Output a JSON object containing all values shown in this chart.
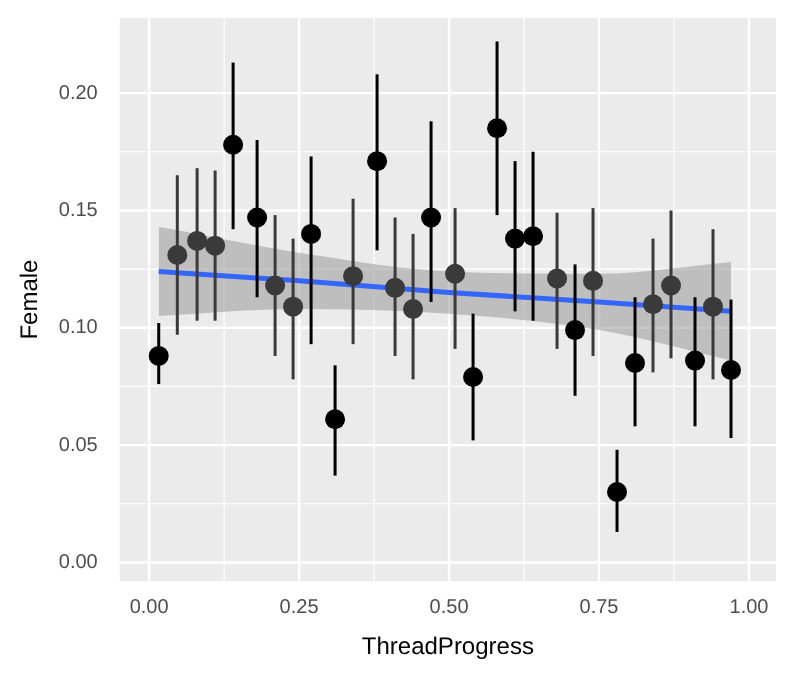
{
  "chart_data": {
    "type": "scatter",
    "xlabel": "ThreadProgress",
    "ylabel": "Female",
    "xlim": [
      -0.049,
      1.045
    ],
    "ylim": [
      -0.008,
      0.232
    ],
    "xticks": [
      {
        "value": 0,
        "label": "0.00"
      },
      {
        "value": 0.25,
        "label": "0.25"
      },
      {
        "value": 0.5,
        "label": "0.50"
      },
      {
        "value": 0.75,
        "label": "0.75"
      },
      {
        "value": 1,
        "label": "1.00"
      }
    ],
    "yticks": [
      {
        "value": 0,
        "label": "0.00"
      },
      {
        "value": 0.05,
        "label": "0.05"
      },
      {
        "value": 0.1,
        "label": "0.10"
      },
      {
        "value": 0.15,
        "label": "0.15"
      },
      {
        "value": 0.2,
        "label": "0.20"
      }
    ],
    "grid": true,
    "legend": false,
    "series": [
      {
        "marker": "circle",
        "x": [
          0.016,
          0.047,
          0.08,
          0.11,
          0.14,
          0.18,
          0.21,
          0.24,
          0.27,
          0.31,
          0.34,
          0.38,
          0.41,
          0.44,
          0.47,
          0.51,
          0.54,
          0.58,
          0.61,
          0.64,
          0.68,
          0.71,
          0.74,
          0.78,
          0.81,
          0.84,
          0.87,
          0.91,
          0.94,
          0.97
        ],
        "values": [
          0.088,
          0.131,
          0.137,
          0.135,
          0.178,
          0.147,
          0.118,
          0.109,
          0.14,
          0.061,
          0.122,
          0.171,
          0.117,
          0.108,
          0.147,
          0.123,
          0.079,
          0.185,
          0.138,
          0.139,
          0.121,
          0.099,
          0.12,
          0.03,
          0.085,
          0.11,
          0.118,
          0.086,
          0.109,
          0.082
        ],
        "errors": [
          [
            0.076,
            0.102
          ],
          [
            0.097,
            0.165
          ],
          [
            0.103,
            0.168
          ],
          [
            0.103,
            0.167
          ],
          [
            0.142,
            0.213
          ],
          [
            0.113,
            0.18
          ],
          [
            0.088,
            0.148
          ],
          [
            0.078,
            0.138
          ],
          [
            0.093,
            0.173
          ],
          [
            0.037,
            0.084
          ],
          [
            0.093,
            0.155
          ],
          [
            0.133,
            0.208
          ],
          [
            0.088,
            0.147
          ],
          [
            0.078,
            0.14
          ],
          [
            0.111,
            0.188
          ],
          [
            0.091,
            0.151
          ],
          [
            0.052,
            0.106
          ],
          [
            0.148,
            0.222
          ],
          [
            0.107,
            0.171
          ],
          [
            0.103,
            0.175
          ],
          [
            0.091,
            0.149
          ],
          [
            0.071,
            0.127
          ],
          [
            0.088,
            0.151
          ],
          [
            0.013,
            0.048
          ],
          [
            0.058,
            0.113
          ],
          [
            0.081,
            0.138
          ],
          [
            0.087,
            0.15
          ],
          [
            0.058,
            0.113
          ],
          [
            0.078,
            0.142
          ],
          [
            0.053,
            0.112
          ]
        ],
        "colors": [
          "#000000",
          "#3a3a3a",
          "#3a3a3a",
          "#3a3a3a",
          "#000000",
          "#000000",
          "#3a3a3a",
          "#3a3a3a",
          "#000000",
          "#000000",
          "#3a3a3a",
          "#000000",
          "#3a3a3a",
          "#3a3a3a",
          "#000000",
          "#3a3a3a",
          "#000000",
          "#000000",
          "#000000",
          "#000000",
          "#3a3a3a",
          "#000000",
          "#3a3a3a",
          "#000000",
          "#000000",
          "#3a3a3a",
          "#3a3a3a",
          "#000000",
          "#3a3a3a",
          "#000000"
        ]
      },
      {
        "type": "line",
        "color": "#3366ff",
        "x": [
          0.016,
          0.25,
          0.5,
          0.75,
          0.97
        ],
        "values": [
          0.124,
          0.12,
          0.115,
          0.111,
          0.107
        ],
        "lower": [
          0.105,
          0.108,
          0.106,
          0.099,
          0.086
        ],
        "upper": [
          0.143,
          0.132,
          0.124,
          0.123,
          0.128
        ]
      }
    ]
  }
}
